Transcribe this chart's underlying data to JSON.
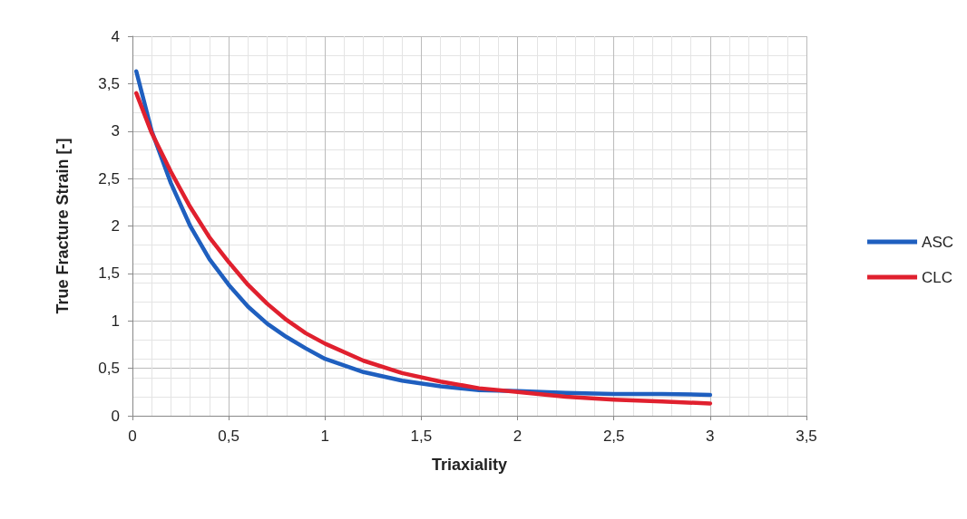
{
  "chart_data": {
    "type": "line",
    "xlabel": "Triaxiality",
    "ylabel": "True Fracture Strain [-]",
    "x": [
      0.02,
      0.1,
      0.2,
      0.3,
      0.4,
      0.5,
      0.6,
      0.7,
      0.8,
      0.9,
      1.0,
      1.2,
      1.4,
      1.6,
      1.8,
      2.0,
      2.25,
      2.5,
      2.75,
      3.0
    ],
    "series": [
      {
        "name": "ASC",
        "color": "#1f5fbf",
        "values": [
          3.63,
          3.0,
          2.45,
          2.0,
          1.65,
          1.38,
          1.15,
          0.97,
          0.83,
          0.71,
          0.6,
          0.46,
          0.37,
          0.31,
          0.27,
          0.26,
          0.24,
          0.23,
          0.23,
          0.22
        ]
      },
      {
        "name": "CLC",
        "color": "#e0202e",
        "values": [
          3.4,
          2.98,
          2.57,
          2.2,
          1.88,
          1.62,
          1.38,
          1.18,
          1.01,
          0.87,
          0.76,
          0.58,
          0.45,
          0.36,
          0.29,
          0.25,
          0.2,
          0.17,
          0.15,
          0.13
        ]
      }
    ],
    "xlim": [
      0,
      3.5
    ],
    "xticks": [
      0,
      {
        "value": 0.5,
        "label": "0,5"
      },
      1,
      {
        "value": 1.5,
        "label": "1,5"
      },
      2,
      {
        "value": 2.5,
        "label": "2,5"
      },
      3,
      {
        "value": 3.5,
        "label": "3,5"
      }
    ],
    "ylim": [
      0,
      4
    ],
    "yticks": [
      0,
      {
        "value": 0.5,
        "label": "0,5"
      },
      1,
      {
        "value": 1.5,
        "label": "1,5"
      },
      2,
      {
        "value": 2.5,
        "label": "2,5"
      },
      3,
      {
        "value": 3.5,
        "label": "3,5"
      },
      4
    ],
    "grid": true,
    "legend": "right",
    "marker": "none",
    "line_style": "solid"
  }
}
